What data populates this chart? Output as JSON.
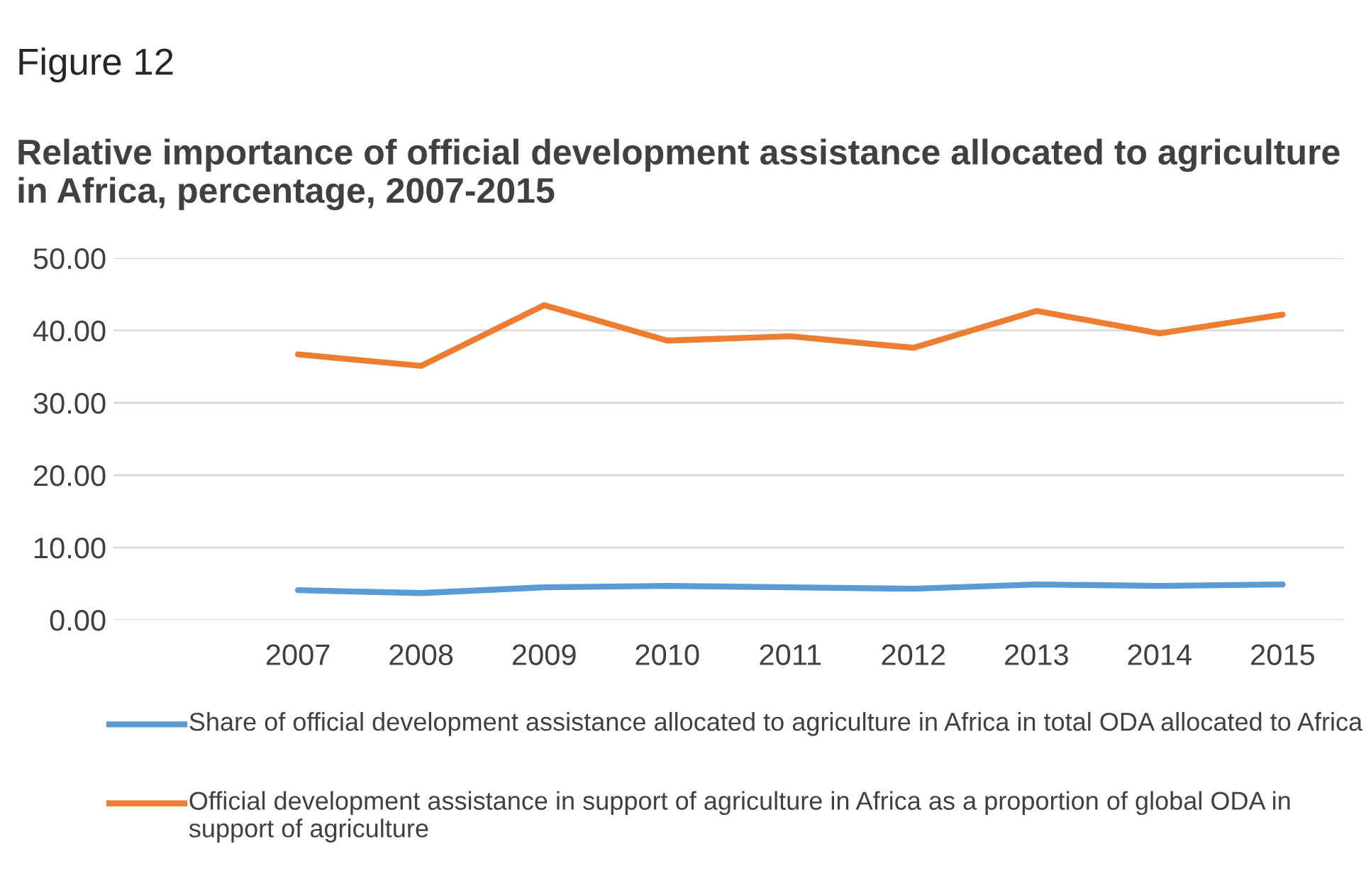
{
  "chart_data": {
    "type": "line",
    "title": "Figure 12",
    "subtitle": "Relative importance of official development assistance allocated to agriculture in Africa, percentage, 2007-2015",
    "categories": [
      null,
      "2007",
      "2008",
      "2009",
      "2010",
      "2011",
      "2012",
      "2013",
      "2014",
      "2015"
    ],
    "series": [
      {
        "name": "Share of official development assistance allocated to agriculture in Africa in total ODA allocated to Africa",
        "color": "#5b9bd5",
        "values": [
          null,
          4.1,
          3.7,
          4.5,
          4.7,
          4.5,
          4.3,
          4.9,
          4.7,
          4.9
        ]
      },
      {
        "name": "Official development assistance in support of agriculture in Africa as a proportion of global ODA in support of agriculture",
        "color": "#ed7d31",
        "values": [
          null,
          36.7,
          35.1,
          43.5,
          38.6,
          39.2,
          37.6,
          42.7,
          39.6,
          42.2
        ]
      }
    ],
    "ylim": [
      0,
      50
    ],
    "yticks": [
      {
        "value": 0,
        "label": "0.00"
      },
      {
        "value": 10,
        "label": "10.00"
      },
      {
        "value": 20,
        "label": "20.00"
      },
      {
        "value": 30,
        "label": "30.00"
      },
      {
        "value": 40,
        "label": "40.00"
      },
      {
        "value": 50,
        "label": "50.00"
      }
    ],
    "grid": "y",
    "legend": "bottom",
    "marker": "none",
    "line_style": "solid"
  }
}
